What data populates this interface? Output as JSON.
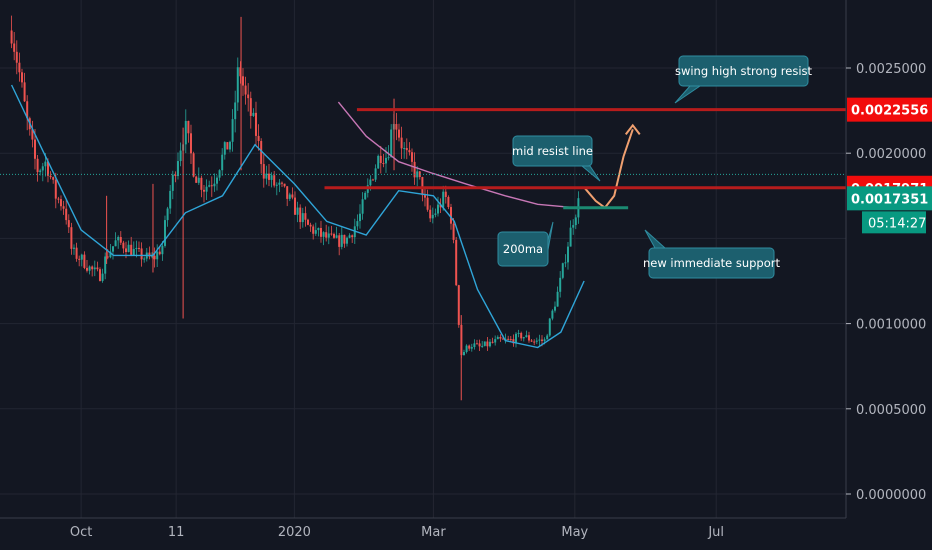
{
  "chart_data": {
    "type": "candlestick",
    "x_ticks": [
      "Oct",
      "11",
      "2020",
      "Mar",
      "May",
      "Jul"
    ],
    "y_ticks": [
      "0.0025000",
      "0.0020000",
      "0.0010000",
      "0.0005000",
      "0.0000000"
    ],
    "ylim": [
      0,
      0.0029
    ],
    "price_labels": [
      {
        "name": "swing-high-level",
        "value": 0.0022556,
        "label": "0.0022556",
        "color": "#f20c0c"
      },
      {
        "name": "mid-resist-level",
        "value": 0.0017971,
        "label": "0.0017971",
        "color": "#f20c0c"
      },
      {
        "name": "last-price",
        "value": 0.0017351,
        "label": "0.0017351",
        "color": "#089981"
      }
    ],
    "countdown": "05:14:27",
    "horizontal_lines": [
      {
        "name": "swing-high-resist-line",
        "value": 0.0022556,
        "from_date": "2020-01-28",
        "color": "#b71c1c"
      },
      {
        "name": "mid-resist-line",
        "value": 0.0017971,
        "from_date": "2020-01-14",
        "color": "#b71c1c"
      },
      {
        "name": "immediate-support-line",
        "value": 0.00168,
        "from_date": "2020-04-26",
        "to_date": "2020-05-24",
        "color": "#1b8a72"
      }
    ],
    "annotations": [
      {
        "name": "swing-high-callout",
        "text": "swing high strong resist"
      },
      {
        "name": "mid-resist-callout",
        "text": "mid resist line"
      },
      {
        "name": "ma200-callout",
        "text": "200ma"
      },
      {
        "name": "immediate-support-callout",
        "text": "new immediate support"
      }
    ],
    "series": [
      {
        "name": "price",
        "kind": "candles",
        "points": [
          [
            "2019-09-01",
            0.00272
          ],
          [
            "2019-09-04",
            0.0025
          ],
          [
            "2019-09-08",
            0.00216
          ],
          [
            "2019-09-12",
            0.0019
          ],
          [
            "2019-09-16",
            0.00195
          ],
          [
            "2019-09-20",
            0.00175
          ],
          [
            "2019-09-24",
            0.00168
          ],
          [
            "2019-09-27",
            0.00142
          ],
          [
            "2019-10-01",
            0.00138
          ],
          [
            "2019-10-05",
            0.00132
          ],
          [
            "2019-10-09",
            0.00128
          ],
          [
            "2019-10-12",
            0.0014
          ],
          [
            "2019-10-16",
            0.00148
          ],
          [
            "2019-10-20",
            0.00146
          ],
          [
            "2019-10-24",
            0.00142
          ],
          [
            "2019-10-28",
            0.00139
          ],
          [
            "2019-11-01",
            0.00138
          ],
          [
            "2019-11-05",
            0.00145
          ],
          [
            "2019-11-08",
            0.00175
          ],
          [
            "2019-11-12",
            0.002
          ],
          [
            "2019-11-15",
            0.00215
          ],
          [
            "2019-11-19",
            0.00188
          ],
          [
            "2019-11-23",
            0.0018
          ],
          [
            "2019-11-27",
            0.00184
          ],
          [
            "2019-12-01",
            0.00198
          ],
          [
            "2019-12-05",
            0.0021
          ],
          [
            "2019-12-08",
            0.00252
          ],
          [
            "2019-12-11",
            0.00232
          ],
          [
            "2019-12-15",
            0.00215
          ],
          [
            "2019-12-19",
            0.00188
          ],
          [
            "2019-12-23",
            0.00182
          ],
          [
            "2019-12-27",
            0.00178
          ],
          [
            "2020-01-01",
            0.00168
          ],
          [
            "2020-01-06",
            0.00158
          ],
          [
            "2020-01-12",
            0.00152
          ],
          [
            "2020-01-19",
            0.00148
          ],
          [
            "2020-01-24",
            0.0015
          ],
          [
            "2020-01-29",
            0.00162
          ],
          [
            "2020-02-03",
            0.00185
          ],
          [
            "2020-02-07",
            0.002
          ],
          [
            "2020-02-10",
            0.00198
          ],
          [
            "2020-02-13",
            0.00222
          ],
          [
            "2020-02-17",
            0.00202
          ],
          [
            "2020-02-21",
            0.00192
          ],
          [
            "2020-02-25",
            0.0018
          ],
          [
            "2020-02-28",
            0.0016
          ],
          [
            "2020-03-03",
            0.00168
          ],
          [
            "2020-03-06",
            0.00175
          ],
          [
            "2020-03-09",
            0.0016
          ],
          [
            "2020-03-12",
            0.001
          ],
          [
            "2020-03-13",
            0.00082
          ],
          [
            "2020-03-17",
            0.00088
          ],
          [
            "2020-03-21",
            0.00086
          ],
          [
            "2020-03-25",
            0.00088
          ],
          [
            "2020-03-29",
            0.0009
          ],
          [
            "2020-04-03",
            0.0009
          ],
          [
            "2020-04-08",
            0.00093
          ],
          [
            "2020-04-13",
            0.0009
          ],
          [
            "2020-04-18",
            0.0009
          ],
          [
            "2020-04-21",
            0.00105
          ],
          [
            "2020-04-24",
            0.0012
          ],
          [
            "2020-04-27",
            0.0014
          ],
          [
            "2020-04-30",
            0.0016
          ],
          [
            "2020-05-03",
            0.00173
          ]
        ]
      },
      {
        "name": "ema",
        "kind": "line",
        "color": "#2fa5d8",
        "points": [
          [
            "2019-09-01",
            0.0024
          ],
          [
            "2019-09-15",
            0.002
          ],
          [
            "2019-10-01",
            0.00155
          ],
          [
            "2019-10-15",
            0.0014
          ],
          [
            "2019-11-01",
            0.0014
          ],
          [
            "2019-11-15",
            0.00165
          ],
          [
            "2019-12-01",
            0.00175
          ],
          [
            "2019-12-15",
            0.00205
          ],
          [
            "2020-01-01",
            0.00182
          ],
          [
            "2020-01-15",
            0.0016
          ],
          [
            "2020-02-01",
            0.00152
          ],
          [
            "2020-02-15",
            0.00178
          ],
          [
            "2020-03-01",
            0.00175
          ],
          [
            "2020-03-10",
            0.0016
          ],
          [
            "2020-03-20",
            0.0012
          ],
          [
            "2020-04-01",
            0.0009
          ],
          [
            "2020-04-15",
            0.00086
          ],
          [
            "2020-04-25",
            0.00095
          ],
          [
            "2020-05-05",
            0.00125
          ]
        ]
      },
      {
        "name": "200ma",
        "kind": "line",
        "color": "#c777b6",
        "points": [
          [
            "2020-01-20",
            0.0023
          ],
          [
            "2020-02-01",
            0.0021
          ],
          [
            "2020-02-15",
            0.00195
          ],
          [
            "2020-03-01",
            0.00188
          ],
          [
            "2020-03-15",
            0.00182
          ],
          [
            "2020-04-01",
            0.00175
          ],
          [
            "2020-04-15",
            0.0017
          ],
          [
            "2020-05-01",
            0.00168
          ]
        ]
      },
      {
        "name": "projected-path",
        "kind": "line",
        "color": "#f0a070",
        "points": [
          [
            "2020-05-05",
            0.0018
          ],
          [
            "2020-05-10",
            0.00172
          ],
          [
            "2020-05-14",
            0.00168
          ],
          [
            "2020-05-18",
            0.00175
          ],
          [
            "2020-05-22",
            0.00198
          ],
          [
            "2020-05-26",
            0.00214
          ]
        ]
      }
    ]
  }
}
